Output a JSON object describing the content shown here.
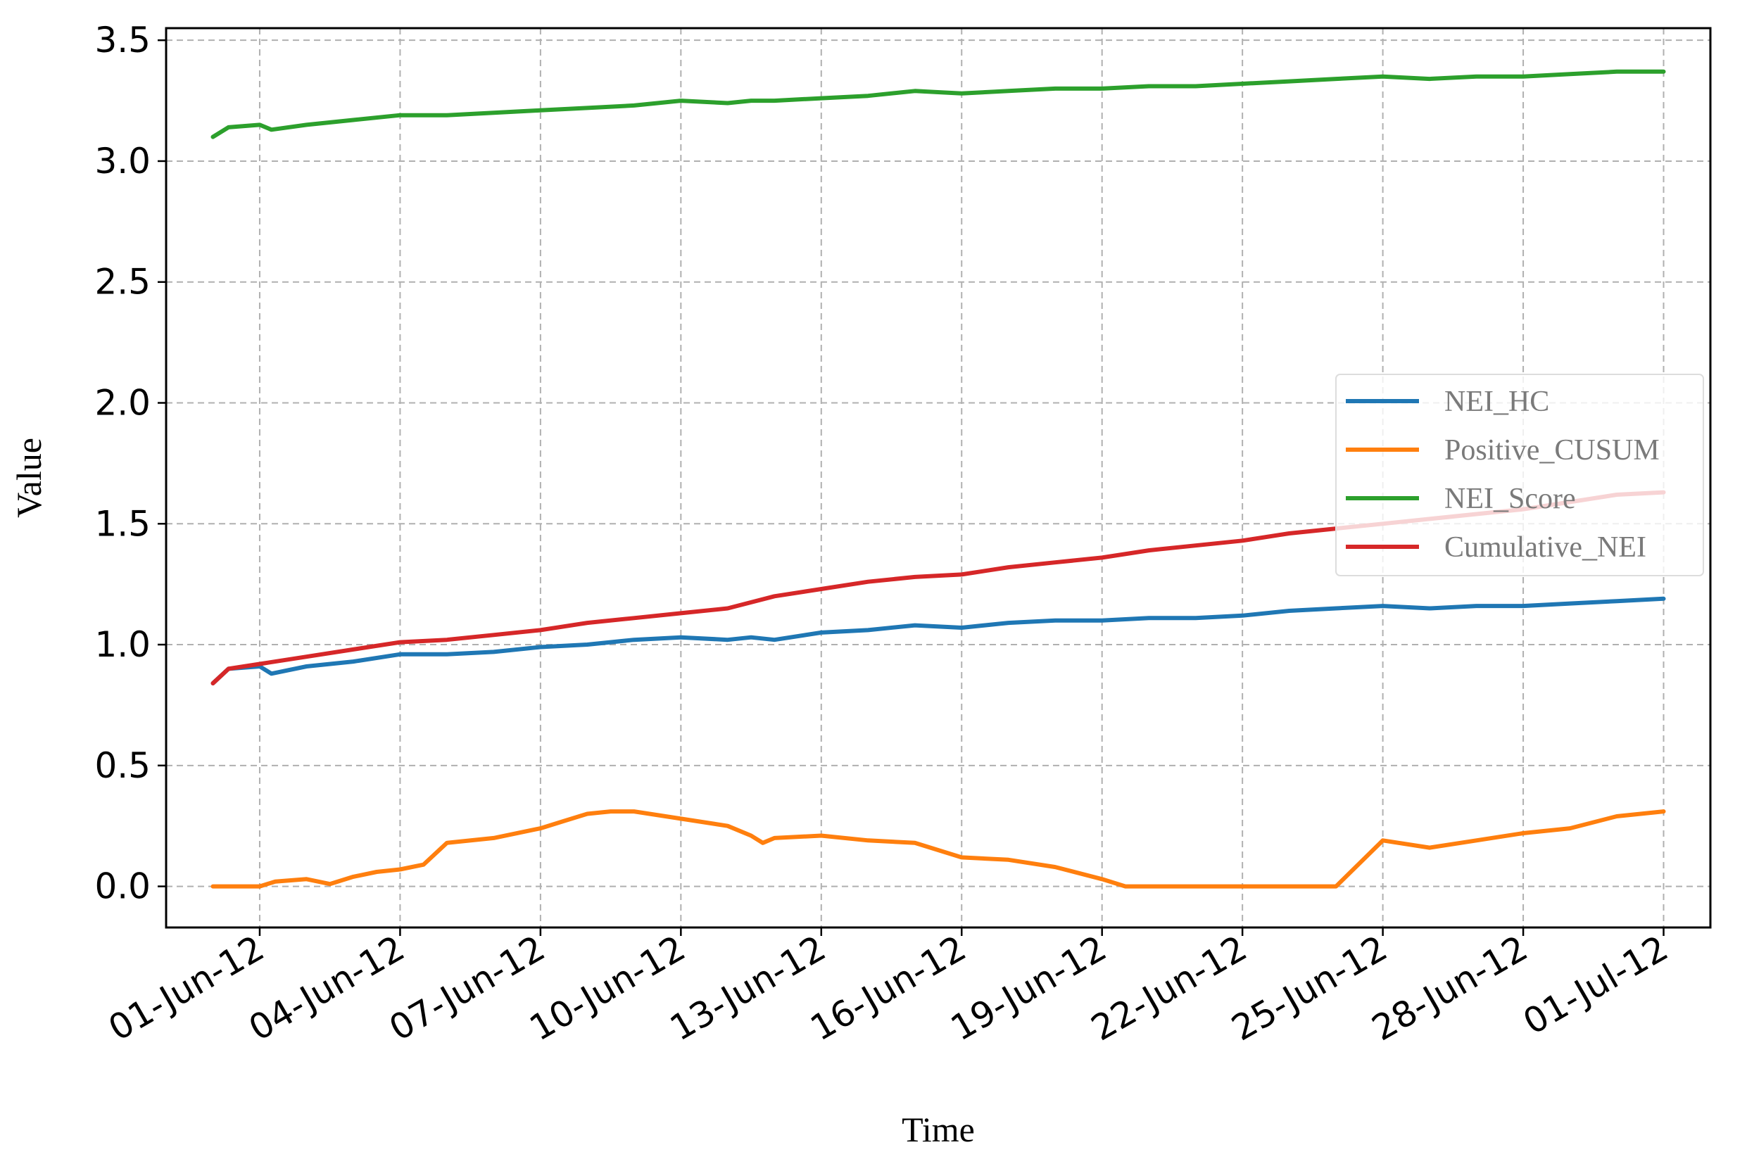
{
  "chart_data": {
    "type": "line",
    "title": "",
    "xlabel": "Time",
    "ylabel": "Value",
    "x_range": [
      "2012-05-30",
      "2012-07-02"
    ],
    "ylim": [
      -0.17,
      3.55
    ],
    "y_ticks": [
      0.0,
      0.5,
      1.0,
      1.5,
      2.0,
      2.5,
      3.0,
      3.5
    ],
    "y_tick_labels": [
      "0.0",
      "0.5",
      "1.0",
      "1.5",
      "2.0",
      "2.5",
      "3.0",
      "3.5"
    ],
    "x_ticks": [
      "2012-06-01",
      "2012-06-04",
      "2012-06-07",
      "2012-06-10",
      "2012-06-13",
      "2012-06-16",
      "2012-06-19",
      "2012-06-22",
      "2012-06-25",
      "2012-06-28",
      "2012-07-01"
    ],
    "x_tick_labels": [
      "01-Jun-12",
      "04-Jun-12",
      "07-Jun-12",
      "10-Jun-12",
      "13-Jun-12",
      "16-Jun-12",
      "19-Jun-12",
      "22-Jun-12",
      "25-Jun-12",
      "28-Jun-12",
      "01-Jul-12"
    ],
    "grid": true,
    "legend_position": "center-right",
    "series": [
      {
        "name": "NEI_HC",
        "color": "#1f77b4",
        "x": [
          "2012-05-31",
          "2012-05-31 08:00",
          "2012-06-01",
          "2012-06-01 06:00",
          "2012-06-02",
          "2012-06-03",
          "2012-06-04",
          "2012-06-05",
          "2012-06-06",
          "2012-06-07",
          "2012-06-08",
          "2012-06-09",
          "2012-06-10",
          "2012-06-11",
          "2012-06-11 12:00",
          "2012-06-12",
          "2012-06-13",
          "2012-06-14",
          "2012-06-15",
          "2012-06-16",
          "2012-06-17",
          "2012-06-18",
          "2012-06-19",
          "2012-06-20",
          "2012-06-21",
          "2012-06-22",
          "2012-06-23",
          "2012-06-24",
          "2012-06-25",
          "2012-06-26",
          "2012-06-27",
          "2012-06-28",
          "2012-06-29",
          "2012-06-30",
          "2012-07-01"
        ],
        "y": [
          0.84,
          0.9,
          0.91,
          0.88,
          0.91,
          0.93,
          0.96,
          0.96,
          0.97,
          0.99,
          1.0,
          1.02,
          1.03,
          1.02,
          1.03,
          1.02,
          1.05,
          1.06,
          1.08,
          1.07,
          1.09,
          1.1,
          1.1,
          1.11,
          1.11,
          1.12,
          1.14,
          1.15,
          1.16,
          1.15,
          1.16,
          1.16,
          1.17,
          1.18,
          1.19
        ]
      },
      {
        "name": "Positive_CUSUM",
        "color": "#ff7f0e",
        "x": [
          "2012-05-31",
          "2012-06-01",
          "2012-06-01 08:00",
          "2012-06-02",
          "2012-06-02 12:00",
          "2012-06-03",
          "2012-06-03 12:00",
          "2012-06-04",
          "2012-06-04 12:00",
          "2012-06-05",
          "2012-06-06",
          "2012-06-07",
          "2012-06-07 12:00",
          "2012-06-08",
          "2012-06-08 12:00",
          "2012-06-09",
          "2012-06-10",
          "2012-06-11",
          "2012-06-11 12:00",
          "2012-06-11 18:00",
          "2012-06-12",
          "2012-06-13",
          "2012-06-14",
          "2012-06-15",
          "2012-06-16",
          "2012-06-17",
          "2012-06-18",
          "2012-06-19",
          "2012-06-19 12:00",
          "2012-06-20",
          "2012-06-21",
          "2012-06-22",
          "2012-06-23",
          "2012-06-24",
          "2012-06-25",
          "2012-06-26",
          "2012-06-27",
          "2012-06-28",
          "2012-06-29",
          "2012-06-30",
          "2012-07-01"
        ],
        "y": [
          0.0,
          0.0,
          0.02,
          0.03,
          0.01,
          0.04,
          0.06,
          0.07,
          0.09,
          0.18,
          0.2,
          0.24,
          0.27,
          0.3,
          0.31,
          0.31,
          0.28,
          0.25,
          0.21,
          0.18,
          0.2,
          0.21,
          0.19,
          0.18,
          0.12,
          0.11,
          0.08,
          0.03,
          0.0,
          0.0,
          0.0,
          0.0,
          0.0,
          0.0,
          0.19,
          0.16,
          0.19,
          0.22,
          0.24,
          0.29,
          0.31
        ]
      },
      {
        "name": "NEI_Score",
        "color": "#2ca02c",
        "x": [
          "2012-05-31",
          "2012-05-31 08:00",
          "2012-06-01",
          "2012-06-01 06:00",
          "2012-06-02",
          "2012-06-03",
          "2012-06-04",
          "2012-06-05",
          "2012-06-06",
          "2012-06-07",
          "2012-06-08",
          "2012-06-09",
          "2012-06-10",
          "2012-06-11",
          "2012-06-11 12:00",
          "2012-06-12",
          "2012-06-13",
          "2012-06-14",
          "2012-06-15",
          "2012-06-16",
          "2012-06-17",
          "2012-06-18",
          "2012-06-19",
          "2012-06-20",
          "2012-06-21",
          "2012-06-22",
          "2012-06-23",
          "2012-06-24",
          "2012-06-25",
          "2012-06-26",
          "2012-06-27",
          "2012-06-28",
          "2012-06-29",
          "2012-06-30",
          "2012-07-01"
        ],
        "y": [
          3.1,
          3.14,
          3.15,
          3.13,
          3.15,
          3.17,
          3.19,
          3.19,
          3.2,
          3.21,
          3.22,
          3.23,
          3.25,
          3.24,
          3.25,
          3.25,
          3.26,
          3.27,
          3.29,
          3.28,
          3.29,
          3.3,
          3.3,
          3.31,
          3.31,
          3.32,
          3.33,
          3.34,
          3.35,
          3.34,
          3.35,
          3.35,
          3.36,
          3.37,
          3.37
        ]
      },
      {
        "name": "Cumulative_NEI",
        "color": "#d62728",
        "x": [
          "2012-05-31",
          "2012-05-31 08:00",
          "2012-06-01",
          "2012-06-02",
          "2012-06-03",
          "2012-06-04",
          "2012-06-05",
          "2012-06-06",
          "2012-06-07",
          "2012-06-08",
          "2012-06-09",
          "2012-06-10",
          "2012-06-11",
          "2012-06-12",
          "2012-06-13",
          "2012-06-14",
          "2012-06-15",
          "2012-06-16",
          "2012-06-17",
          "2012-06-18",
          "2012-06-19",
          "2012-06-20",
          "2012-06-21",
          "2012-06-22",
          "2012-06-23",
          "2012-06-24",
          "2012-06-25",
          "2012-06-26",
          "2012-06-27",
          "2012-06-28",
          "2012-06-29",
          "2012-06-30",
          "2012-07-01"
        ],
        "y": [
          0.84,
          0.9,
          0.92,
          0.95,
          0.98,
          1.01,
          1.02,
          1.04,
          1.06,
          1.09,
          1.11,
          1.13,
          1.15,
          1.2,
          1.23,
          1.26,
          1.28,
          1.29,
          1.32,
          1.34,
          1.36,
          1.39,
          1.41,
          1.43,
          1.46,
          1.48,
          1.5,
          1.52,
          1.54,
          1.56,
          1.59,
          1.62,
          1.63
        ]
      }
    ]
  }
}
